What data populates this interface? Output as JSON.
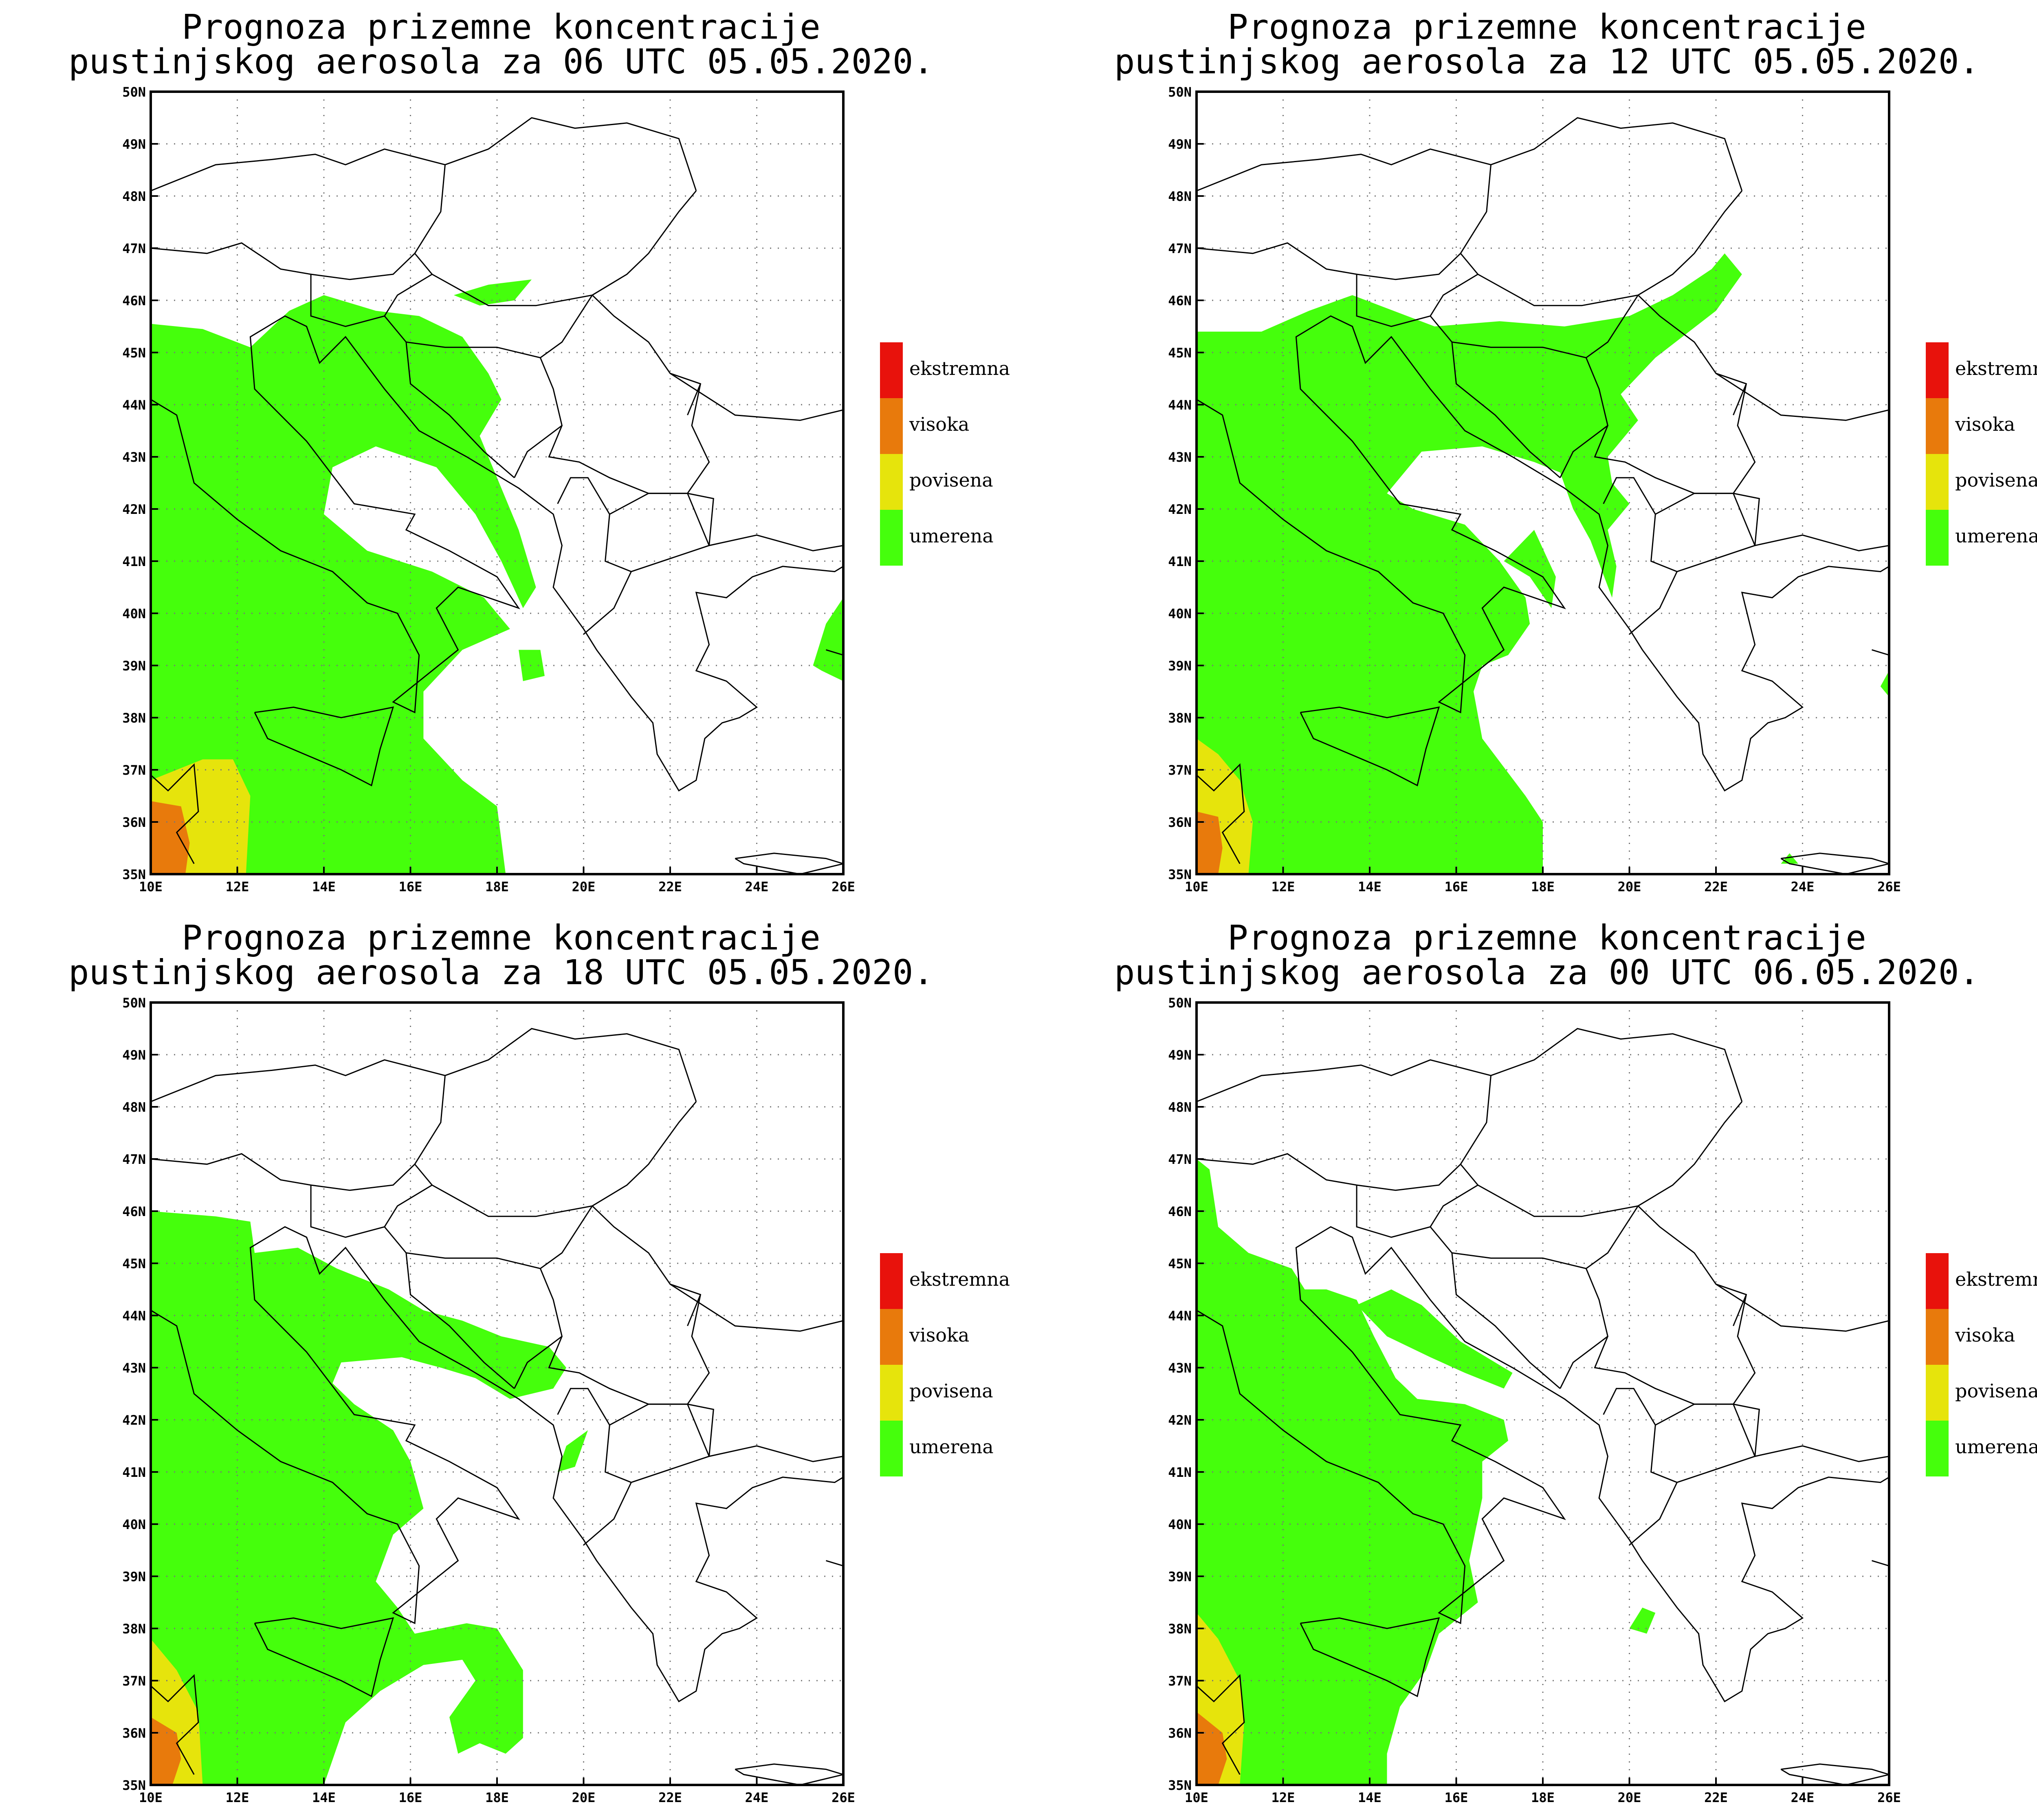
{
  "panels": [
    {
      "title_line1": "Prognoza prizemne koncentracije",
      "title_line2": "pustinjskog aerosola za 06 UTC 05.05.2020.",
      "scenario": 0
    },
    {
      "title_line1": "Prognoza prizemne koncentracije",
      "title_line2": "pustinjskog aerosola za 12 UTC 05.05.2020.",
      "scenario": 1
    },
    {
      "title_line1": "Prognoza prizemne koncentracije",
      "title_line2": "pustinjskog aerosola za 18 UTC 05.05.2020.",
      "scenario": 2
    },
    {
      "title_line1": "Prognoza prizemne koncentracije",
      "title_line2": "pustinjskog aerosola za 00 UTC 06.05.2020.",
      "scenario": 3
    }
  ],
  "x_ticks": [
    "10E",
    "12E",
    "14E",
    "16E",
    "18E",
    "20E",
    "22E",
    "24E",
    "26E"
  ],
  "y_ticks": [
    "35N",
    "36N",
    "37N",
    "38N",
    "39N",
    "40N",
    "41N",
    "42N",
    "43N",
    "44N",
    "45N",
    "46N",
    "47N",
    "48N",
    "49N",
    "50N"
  ],
  "legend": [
    {
      "label": "ekstremna",
      "color": "#e8120c"
    },
    {
      "label": "visoka",
      "color": "#e87a0c"
    },
    {
      "label": "povisena",
      "color": "#e6e40c"
    },
    {
      "label": "umerena",
      "color": "#45ff0c"
    }
  ],
  "colors": {
    "umerena": "#45ff0c",
    "povisena": "#e6e40c",
    "visoka": "#e87a0c",
    "ekstremna": "#e8120c"
  }
}
